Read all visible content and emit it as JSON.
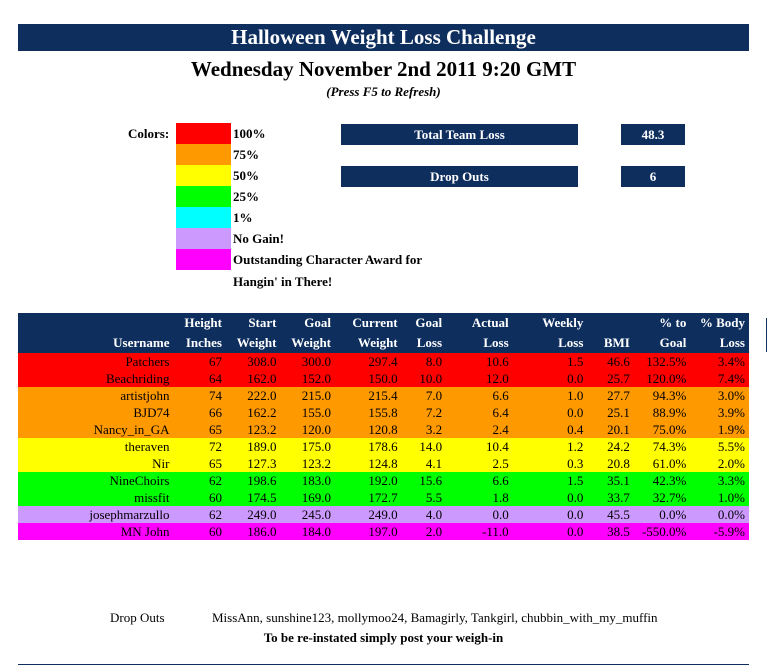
{
  "title": "Halloween Weight Loss Challenge",
  "datetime": "Wednesday November 2nd 2011 9:20 GMT",
  "refresh_note": "(Press F5 to Refresh)",
  "legend": {
    "label": "Colors:",
    "items": [
      {
        "label": "100%",
        "color": "#ff0000"
      },
      {
        "label": "75%",
        "color": "#ff9900"
      },
      {
        "label": "50%",
        "color": "#ffff00"
      },
      {
        "label": "25%",
        "color": "#00ff00"
      },
      {
        "label": "1%",
        "color": "#00ffff"
      },
      {
        "label": "No Gain!",
        "color": "#cc99ff"
      },
      {
        "label": "Outstanding Character Award for",
        "label2": "Hangin' in There!",
        "color": "#ff00ff"
      }
    ]
  },
  "stats": {
    "total_team_loss_label": "Total Team Loss",
    "total_team_loss_value": "48.3",
    "drop_outs_label": "Drop Outs",
    "drop_outs_value": "6"
  },
  "table": {
    "headers_top": [
      "",
      "Height",
      "Start",
      "Goal",
      "Current",
      "Goal",
      "Actual",
      "Weekly",
      "",
      "% to",
      "% Body"
    ],
    "headers_bottom": [
      "Username",
      "Inches",
      "Weight",
      "Weight",
      "Weight",
      "Loss",
      "Loss",
      "Loss",
      "BMI",
      "Goal",
      "Loss"
    ],
    "rows": [
      {
        "color": "#ff0000",
        "cells": [
          "Patchers",
          "67",
          "308.0",
          "300.0",
          "297.4",
          "8.0",
          "10.6",
          "1.5",
          "46.6",
          "132.5%",
          "3.4%"
        ]
      },
      {
        "color": "#ff0000",
        "cells": [
          "Beachriding",
          "64",
          "162.0",
          "152.0",
          "150.0",
          "10.0",
          "12.0",
          "0.0",
          "25.7",
          "120.0%",
          "7.4%"
        ]
      },
      {
        "color": "#ff9900",
        "cells": [
          "artistjohn",
          "74",
          "222.0",
          "215.0",
          "215.4",
          "7.0",
          "6.6",
          "1.0",
          "27.7",
          "94.3%",
          "3.0%"
        ]
      },
      {
        "color": "#ff9900",
        "cells": [
          "BJD74",
          "66",
          "162.2",
          "155.0",
          "155.8",
          "7.2",
          "6.4",
          "0.0",
          "25.1",
          "88.9%",
          "3.9%"
        ]
      },
      {
        "color": "#ff9900",
        "cells": [
          "Nancy_in_GA",
          "65",
          "123.2",
          "120.0",
          "120.8",
          "3.2",
          "2.4",
          "0.4",
          "20.1",
          "75.0%",
          "1.9%"
        ]
      },
      {
        "color": "#ffff00",
        "cells": [
          "theraven",
          "72",
          "189.0",
          "175.0",
          "178.6",
          "14.0",
          "10.4",
          "1.2",
          "24.2",
          "74.3%",
          "5.5%"
        ]
      },
      {
        "color": "#ffff00",
        "cells": [
          "Nir",
          "65",
          "127.3",
          "123.2",
          "124.8",
          "4.1",
          "2.5",
          "0.3",
          "20.8",
          "61.0%",
          "2.0%"
        ]
      },
      {
        "color": "#00ff00",
        "cells": [
          "NineChoirs",
          "62",
          "198.6",
          "183.0",
          "192.0",
          "15.6",
          "6.6",
          "1.5",
          "35.1",
          "42.3%",
          "3.3%"
        ]
      },
      {
        "color": "#00ff00",
        "cells": [
          "missfit",
          "60",
          "174.5",
          "169.0",
          "172.7",
          "5.5",
          "1.8",
          "0.0",
          "33.7",
          "32.7%",
          "1.0%"
        ]
      },
      {
        "color": "#cc99ff",
        "cells": [
          "josephmarzullo",
          "62",
          "249.0",
          "245.0",
          "249.0",
          "4.0",
          "0.0",
          "0.0",
          "45.5",
          "0.0%",
          "0.0%"
        ]
      },
      {
        "color": "#ff00ff",
        "cells": [
          "MN John",
          "60",
          "186.0",
          "184.0",
          "197.0",
          "2.0",
          "-11.0",
          "0.0",
          "38.5",
          "-550.0%",
          "-5.9%"
        ]
      }
    ]
  },
  "dropouts": {
    "label": "Drop Outs",
    "names": "MissAnn, sunshine123, mollymoo24, Bamagirly, Tankgirl, chubbin_with_my_muffin",
    "reinstate_note": "To be re-instated simply post your weigh-in"
  }
}
